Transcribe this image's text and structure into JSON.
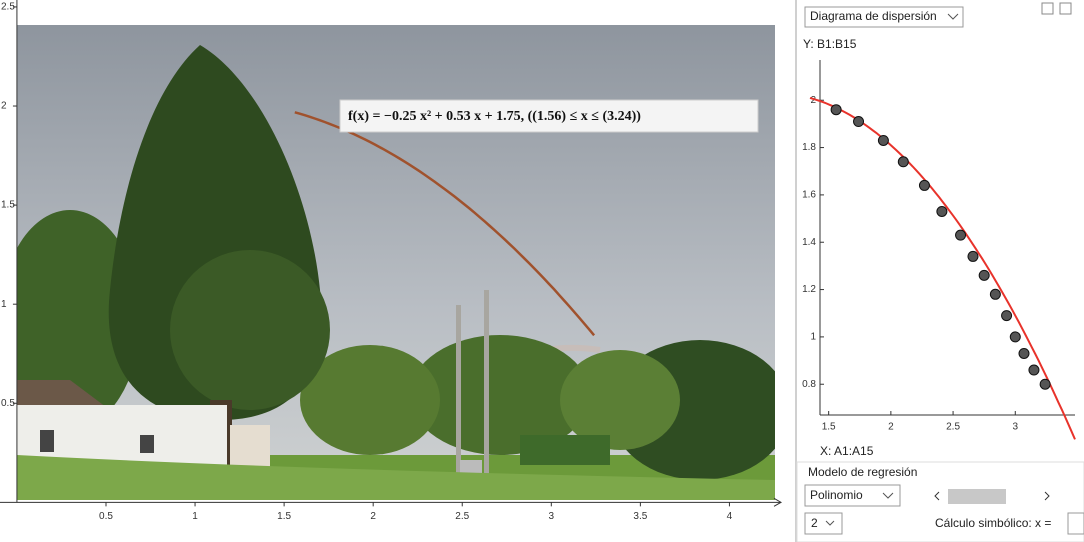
{
  "chart_data": [
    {
      "type": "function",
      "formula": "f(x) = −0.25 x² + 0.53 x + 1.75,    ((1.56) ≤ x ≤ (3.24))",
      "coefficients": [
        -0.25,
        0.53,
        1.75
      ],
      "domain": [
        1.56,
        3.24
      ],
      "color": "#a0522d",
      "xlim": [
        -0.095,
        4.34
      ],
      "ylim": [
        -0.2,
        2.535
      ],
      "xticks": [
        0.5,
        1,
        1.5,
        2,
        2.5,
        3,
        3.5,
        4
      ],
      "yticks": [
        0.5,
        1,
        1.5,
        2,
        2.5
      ]
    },
    {
      "type": "scatter",
      "x_label": "X:  A1:A15",
      "y_label": "Y:  B1:B15",
      "color": "#e8332b",
      "point_color": "#555555",
      "x": [
        1.56,
        1.74,
        1.94,
        2.1,
        2.27,
        2.41,
        2.56,
        2.66,
        2.75,
        2.84,
        2.93,
        3.0,
        3.07,
        3.15,
        3.24
      ],
      "values": [
        1.96,
        1.91,
        1.83,
        1.74,
        1.64,
        1.53,
        1.43,
        1.34,
        1.26,
        1.18,
        1.09,
        1.0,
        0.93,
        0.86,
        0.8
      ],
      "coefficients": [
        -0.25,
        0.53,
        1.75
      ],
      "xlim": [
        1.35,
        3.48
      ],
      "ylim": [
        0.67,
        2.17
      ],
      "xticks": [
        1.5,
        2,
        2.5,
        3
      ],
      "yticks": [
        0.8,
        1,
        1.2,
        1.4,
        1.6,
        1.8,
        2
      ]
    }
  ],
  "panel": {
    "plot_type": "Diagrama de dispersión",
    "model_heading": "Modelo de regresión",
    "model": "Polinomio",
    "degree": "2",
    "symbolic": "Cálculo simbólico:  x ="
  }
}
